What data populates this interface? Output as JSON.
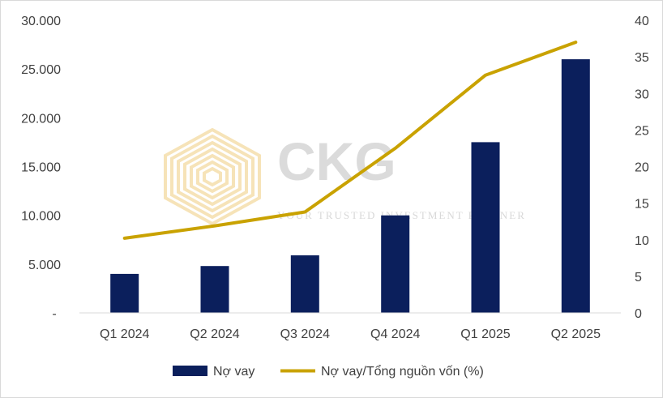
{
  "chart_data": {
    "type": "bar+line",
    "categories": [
      "Q1 2024",
      "Q2 2024",
      "Q3 2024",
      "Q4 2024",
      "Q1 2025",
      "Q2 2025"
    ],
    "series": [
      {
        "name": "Nợ vay",
        "type": "bar",
        "axis": "left",
        "color": "#0b1f5c",
        "values": [
          4000,
          4800,
          5900,
          10000,
          17500,
          26000
        ]
      },
      {
        "name": "Nợ vay/Tổng nguồn vốn (%)",
        "type": "line",
        "axis": "right",
        "color": "#c9a200",
        "values": [
          10.2,
          11.9,
          13.8,
          22.5,
          32.5,
          37.0
        ]
      }
    ],
    "y_left": {
      "range": [
        0,
        30000
      ],
      "ticks": [
        "-",
        "5.000",
        "10.000",
        "15.000",
        "20.000",
        "25.000",
        "30.000"
      ]
    },
    "y_right": {
      "range": [
        0,
        40
      ],
      "ticks": [
        "0",
        "5",
        "10",
        "15",
        "20",
        "25",
        "30",
        "35",
        "40"
      ]
    },
    "grid": false,
    "legend_position": "bottom"
  },
  "watermark": {
    "logo_text": "CKG",
    "tagline": "YOUR TRUSTED INVESTMENT PARTNER",
    "logo_color": "#f3d9a0"
  }
}
